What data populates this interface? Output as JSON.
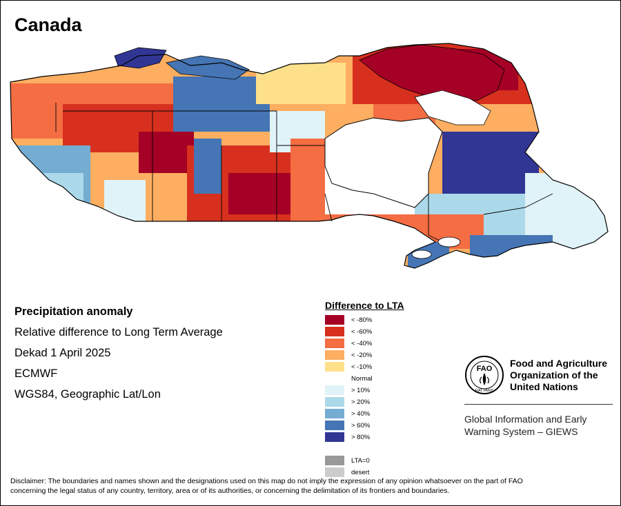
{
  "title": "Canada",
  "info": {
    "line1": "Precipitation anomaly",
    "line2": "Relative difference to Long Term Average",
    "line3": "Dekad 1 April 2025",
    "line4": "ECMWF",
    "line5": "WGS84, Geographic Lat/Lon"
  },
  "legend": {
    "title": "Difference to LTA",
    "items": [
      {
        "label": "< -80%",
        "color": "#a50026"
      },
      {
        "label": "< -60%",
        "color": "#d7301f"
      },
      {
        "label": "< -40%",
        "color": "#f46d43"
      },
      {
        "label": "< -20%",
        "color": "#fdae61"
      },
      {
        "label": "< -10%",
        "color": "#fee08b"
      },
      {
        "label": "Normal",
        "color": "#ffffff"
      },
      {
        "label": "> 10%",
        "color": "#e0f3f8"
      },
      {
        "label": "> 20%",
        "color": "#abd9e9"
      },
      {
        "label": "> 40%",
        "color": "#74add1"
      },
      {
        "label": "> 60%",
        "color": "#4575b4"
      },
      {
        "label": "> 80%",
        "color": "#313695"
      },
      {
        "label": "",
        "color": ""
      },
      {
        "label": "LTA=0",
        "color": "#999999"
      },
      {
        "label": "desert",
        "color": "#cccccc"
      }
    ]
  },
  "org": {
    "name_line1": "Food and Agriculture",
    "name_line2": "Organization of the",
    "name_line3": "United Nations",
    "logo_text": "FAO",
    "logo_motto": "FIAT PANIS",
    "system_line1": "Global Information and Early",
    "system_line2": "Warning System – GIEWS"
  },
  "disclaimer": {
    "line1": "Disclaimer: The boundaries and names shown and the designations used on this map do not imply the expression of any opinion whatsoever on the part of FAO",
    "line2": "concerning the legal status of any country, territory, area or of its authorities, or concerning the delimitation of its frontiers and boundaries."
  }
}
